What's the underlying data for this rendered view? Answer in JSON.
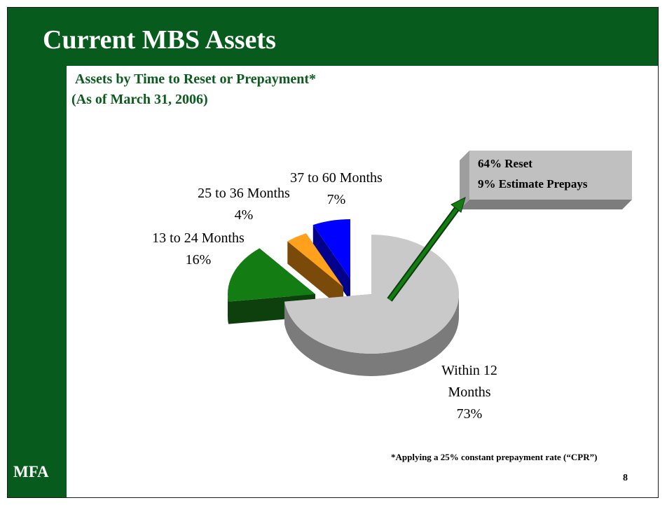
{
  "slide": {
    "title": "Current MBS Assets",
    "subtitle_line1": "Assets by Time to Reset or Prepayment*",
    "subtitle_line2": "(As of March 31, 2006)",
    "logo": "MFA",
    "footnote": "*Applying a 25% constant prepayment rate (“CPR”)",
    "page_number": "8"
  },
  "colors": {
    "brand_green": "#075c1d",
    "subtitle_green": "#0b5b1e"
  },
  "chart_data": {
    "type": "pie",
    "title": "Assets by Time to Reset or Prepayment*",
    "subtitle": "(As of March 31, 2006)",
    "slices": [
      {
        "label_lines": [
          "Within 12",
          "Months"
        ],
        "percent_label": "73%",
        "value": 73,
        "color": "#c9c9c9",
        "side_color": "#7b7b7b",
        "exploded": false
      },
      {
        "label_lines": [
          "13 to 24 Months"
        ],
        "percent_label": "16%",
        "value": 16,
        "color": "#137d13",
        "side_color": "#0d400d",
        "exploded": true
      },
      {
        "label_lines": [
          "25 to 36 Months"
        ],
        "percent_label": "4%",
        "value": 4,
        "color": "#ffa11c",
        "side_color": "#7a4a0a",
        "exploded": true
      },
      {
        "label_lines": [
          "37 to 60 Months"
        ],
        "percent_label": "7%",
        "value": 7,
        "color": "#0000ff",
        "side_color": "#00008a",
        "exploded": true
      }
    ],
    "callout": {
      "lines": [
        "64% Reset",
        "9% Estimate Prepays"
      ],
      "points_to": "Within 12 Months"
    }
  }
}
